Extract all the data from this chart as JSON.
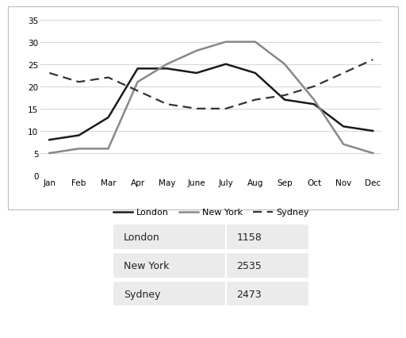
{
  "months": [
    "Jan",
    "Feb",
    "Mar",
    "Apr",
    "May",
    "June",
    "July",
    "Aug",
    "Sep",
    "Oct",
    "Nov",
    "Dec"
  ],
  "london": [
    8,
    9,
    13,
    24,
    24,
    23,
    25,
    23,
    17,
    16,
    11,
    10
  ],
  "new_york": [
    5,
    6,
    6,
    21,
    25,
    28,
    30,
    30,
    25,
    17,
    7,
    5
  ],
  "sydney": [
    23,
    21,
    22,
    19,
    16,
    15,
    15,
    17,
    18,
    20,
    23,
    26
  ],
  "london_color": "#1a1a1a",
  "new_york_color": "#888888",
  "sydney_color": "#333333",
  "ylim": [
    0,
    35
  ],
  "yticks": [
    0,
    5,
    10,
    15,
    20,
    25,
    30,
    35
  ],
  "table_cities": [
    "London",
    "New York",
    "Sydney"
  ],
  "table_values": [
    "1158",
    "2535",
    "2473"
  ],
  "table_bg": "#ebebeb",
  "bg_color": "#ffffff",
  "chart_border_color": "#bbbbbb",
  "grid_color": "#d8d8d8"
}
